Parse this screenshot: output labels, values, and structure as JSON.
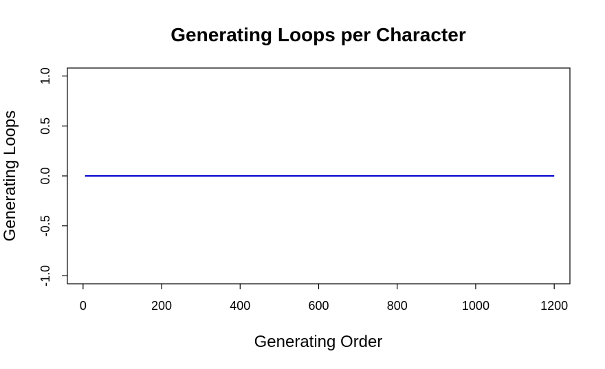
{
  "chart_data": {
    "type": "line",
    "title": "Generating Loops per Character",
    "xlabel": "Generating Order",
    "ylabel": "Generating Loops",
    "xlim": [
      -40,
      1240
    ],
    "ylim": [
      -1.08,
      1.08
    ],
    "x_ticks": [
      0,
      200,
      400,
      600,
      800,
      1000,
      1200
    ],
    "x_tick_labels": [
      "0",
      "200",
      "400",
      "600",
      "800",
      "1000",
      "1200"
    ],
    "y_ticks": [
      -1.0,
      -0.5,
      0.0,
      0.5,
      1.0
    ],
    "y_tick_labels": [
      "-1.0",
      "-0.5",
      "0.0",
      "0.5",
      "1.0"
    ],
    "grid": false,
    "series": [
      {
        "color": "#0000cd",
        "x": [
          5,
          1200
        ],
        "y": [
          0,
          0
        ]
      }
    ]
  }
}
